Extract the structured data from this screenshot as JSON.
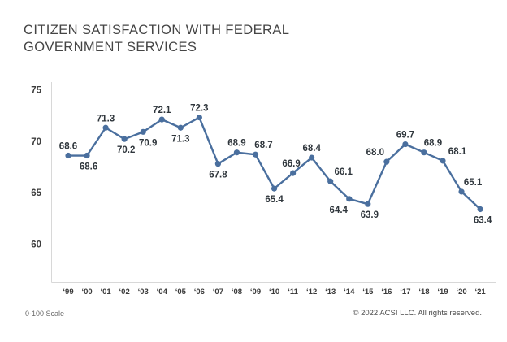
{
  "header": {
    "title_line1": "CITIZEN SATISFACTION WITH FEDERAL",
    "title_line2": "GOVERNMENT SERVICES"
  },
  "chart_data": {
    "type": "line",
    "title": "Citizen Satisfaction with Federal Government Services",
    "xlabel": "",
    "ylabel": "",
    "categories": [
      "‘99",
      "‘00",
      "‘01",
      "‘02",
      "‘03",
      "‘04",
      "‘05",
      "‘06",
      "‘07",
      "‘08",
      "‘09",
      "‘10",
      "‘11",
      "‘12",
      "‘13",
      "‘14",
      "‘15",
      "‘16",
      "‘17",
      "‘18",
      "‘19",
      "‘20",
      "‘21"
    ],
    "values": [
      68.6,
      68.6,
      71.3,
      70.2,
      70.9,
      72.1,
      71.3,
      72.3,
      67.8,
      68.9,
      68.7,
      65.4,
      66.9,
      68.4,
      66.1,
      64.4,
      63.9,
      68.0,
      69.7,
      68.9,
      68.1,
      65.1,
      63.4
    ],
    "value_labels": [
      "68.6",
      "68.6",
      "71.3",
      "70.2",
      "70.9",
      "72.1",
      "71.3",
      "72.3",
      "67.8",
      "68.9",
      "68.7",
      "65.4",
      "66.9",
      "68.4",
      "66.1",
      "64.4",
      "63.9",
      "68.0",
      "69.7",
      "68.9",
      "68.1",
      "65.1",
      "63.4"
    ],
    "label_pos": [
      "above",
      "below",
      "above",
      "below",
      "below",
      "above",
      "below",
      "above",
      "below",
      "above",
      "above",
      "below",
      "above",
      "above",
      "above",
      "below",
      "below",
      "above",
      "above",
      "above",
      "above",
      "above",
      "below"
    ],
    "label_dx": [
      0,
      2,
      0,
      2,
      6,
      0,
      0,
      0,
      0,
      0,
      10,
      0,
      -2,
      0,
      16,
      -13,
      2,
      -14,
      0,
      11,
      18,
      14,
      3
    ],
    "y_ticks": [
      75,
      70,
      65,
      60
    ],
    "ylim": [
      56.5,
      75.5
    ],
    "grid": false,
    "legend_position": "none",
    "series": [
      {
        "name": "Citizen satisfaction (ACSI score, 0-100 scale)",
        "color": "#4a6f9e"
      }
    ]
  },
  "footer": {
    "scale_note": "0-100 Scale",
    "copyright": "© 2022 ACSI LLC. All rights reserved."
  }
}
